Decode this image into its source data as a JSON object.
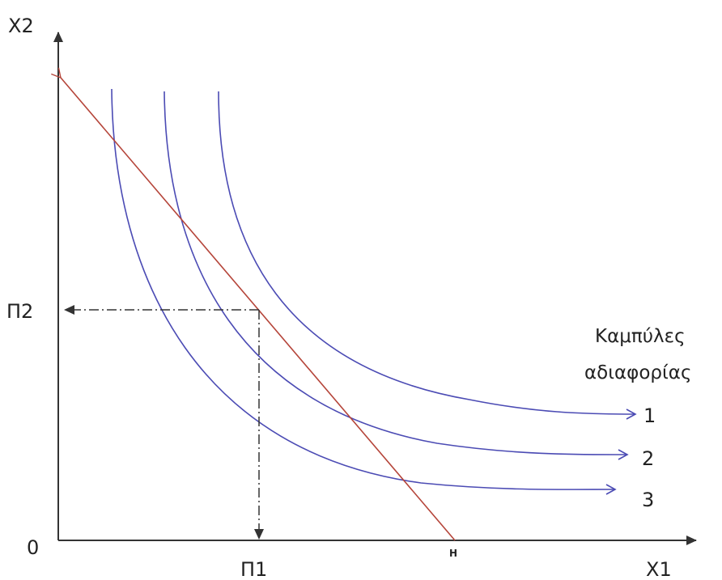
{
  "axes": {
    "y_label": "X2",
    "x_label": "X1",
    "origin_label": "0"
  },
  "points": {
    "p2_label": "Π2",
    "p1_label": "Π1",
    "h_label": "H"
  },
  "legend": {
    "line1": "Καμπύλες",
    "line2": "αδιαφορίας"
  },
  "curves": [
    {
      "label": "1"
    },
    {
      "label": "2"
    },
    {
      "label": "3"
    }
  ],
  "colors": {
    "curves": "#4b4bb4",
    "budget_line": "#b5453a",
    "axes": "#333333"
  }
}
